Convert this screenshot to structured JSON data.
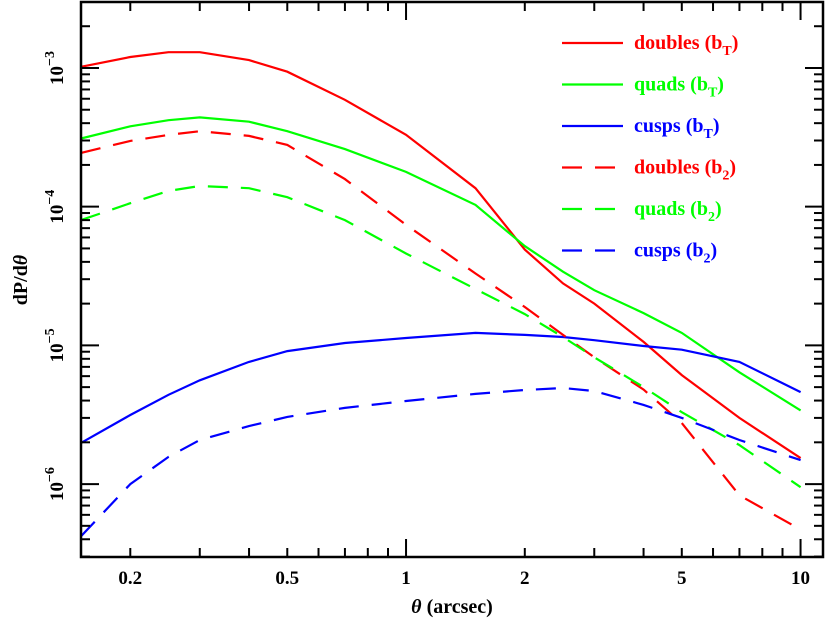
{
  "chart_data": {
    "type": "line",
    "xlabel": {
      "symbol": "θ",
      "rest": " (arcsec)"
    },
    "ylabel": {
      "prefix": "dP/d",
      "symbol": "θ"
    },
    "xscale": "log",
    "yscale": "log",
    "xlim": [
      0.15,
      11.4
    ],
    "ylim": [
      2.98e-07,
      0.00299
    ],
    "grid": false,
    "legend_position": "top-right",
    "x_tick_labels": [
      {
        "value": 0.2,
        "label": "0.2"
      },
      {
        "value": 0.5,
        "label": "0.5"
      },
      {
        "value": 1,
        "label": "1"
      },
      {
        "value": 2,
        "label": "2"
      },
      {
        "value": 5,
        "label": "5"
      },
      {
        "value": 10,
        "label": "10"
      }
    ],
    "y_tick_labels": [
      {
        "value": 0.001,
        "base": "10",
        "exp": "−3"
      },
      {
        "value": 0.0001,
        "base": "10",
        "exp": "−4"
      },
      {
        "value": 1e-05,
        "base": "10",
        "exp": "−5"
      },
      {
        "value": 1e-06,
        "base": "10",
        "exp": "−6"
      }
    ],
    "x": [
      0.15,
      0.2,
      0.25,
      0.3,
      0.4,
      0.5,
      0.7,
      1,
      1.5,
      2,
      2.5,
      3,
      4,
      5,
      7,
      10
    ],
    "series": [
      {
        "name": "doubles",
        "sub": "T",
        "color": "#ff0000",
        "dash": false,
        "values": [
          0.00102,
          0.0012,
          0.0013,
          0.0013,
          0.00114,
          0.00094,
          0.00059,
          0.00033,
          0.000136,
          4.9e-05,
          2.8e-05,
          2e-05,
          1.06e-05,
          6.1e-06,
          3e-06,
          1.54e-06
        ]
      },
      {
        "name": "quads",
        "sub": "T",
        "color": "#00ff00",
        "dash": false,
        "values": [
          0.00031,
          0.00038,
          0.00042,
          0.00044,
          0.00041,
          0.00035,
          0.00026,
          0.000178,
          0.000103,
          5.2e-05,
          3.4e-05,
          2.5e-05,
          1.71e-05,
          1.23e-05,
          6.4e-06,
          3.4e-06
        ]
      },
      {
        "name": "cusps",
        "sub": "T",
        "color": "#0000ff",
        "dash": false,
        "values": [
          1.98e-06,
          3.15e-06,
          4.4e-06,
          5.6e-06,
          7.6e-06,
          9.1e-06,
          1.04e-05,
          1.13e-05,
          1.23e-05,
          1.19e-05,
          1.15e-05,
          1.09e-05,
          9.9e-06,
          9.3e-06,
          7.6e-06,
          4.6e-06
        ]
      },
      {
        "name": "doubles",
        "sub": "2",
        "color": "#ff0000",
        "dash": true,
        "values": [
          0.000244,
          0.000298,
          0.000329,
          0.00035,
          0.000324,
          0.000279,
          0.000158,
          7.4e-05,
          3.3e-05,
          1.89e-05,
          1.19e-05,
          8.2e-06,
          4.8e-06,
          2.75e-06,
          8.3e-07,
          4.7e-07
        ]
      },
      {
        "name": "quads",
        "sub": "2",
        "color": "#00ff00",
        "dash": true,
        "values": [
          8e-05,
          0.000106,
          0.00013,
          0.000141,
          0.000136,
          0.000117,
          8e-05,
          4.6e-05,
          2.55e-05,
          1.68e-05,
          1.15e-05,
          8.2e-06,
          5e-06,
          3.3e-06,
          1.91e-06,
          9.5e-07
        ]
      },
      {
        "name": "cusps",
        "sub": "2",
        "color": "#0000ff",
        "dash": true,
        "values": [
          4.2e-07,
          1e-06,
          1.57e-06,
          2.08e-06,
          2.62e-06,
          3.05e-06,
          3.54e-06,
          3.97e-06,
          4.47e-06,
          4.77e-06,
          4.93e-06,
          4.69e-06,
          3.72e-06,
          3e-06,
          2.08e-06,
          1.49e-06
        ]
      }
    ]
  }
}
